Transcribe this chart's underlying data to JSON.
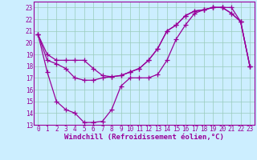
{
  "xlabel": "Windchill (Refroidissement éolien,°C)",
  "x": [
    0,
    1,
    2,
    3,
    4,
    5,
    6,
    7,
    8,
    9,
    10,
    11,
    12,
    13,
    14,
    15,
    16,
    17,
    18,
    19,
    20,
    21,
    22,
    23
  ],
  "line1_y": [
    20.7,
    19.0,
    18.5,
    18.5,
    18.5,
    18.5,
    17.8,
    17.2,
    17.1,
    17.2,
    17.5,
    17.8,
    18.5,
    19.5,
    21.0,
    21.5,
    22.3,
    22.7,
    22.8,
    23.0,
    23.0,
    22.5,
    21.8,
    18.0
  ],
  "line2_y": [
    20.7,
    17.5,
    15.0,
    14.3,
    14.0,
    13.2,
    13.2,
    13.3,
    14.3,
    16.3,
    17.0,
    17.0,
    17.0,
    17.3,
    18.5,
    20.3,
    21.5,
    22.5,
    22.8,
    23.0,
    23.0,
    23.0,
    21.8,
    18.0
  ],
  "line3_y": [
    20.7,
    18.5,
    18.2,
    17.8,
    17.0,
    16.8,
    16.8,
    17.0,
    17.1,
    17.2,
    17.5,
    17.8,
    18.5,
    19.5,
    21.0,
    21.5,
    22.3,
    22.7,
    22.8,
    23.0,
    23.0,
    22.5,
    21.8,
    18.0
  ],
  "line_color": "#990099",
  "bg_color": "#cceeff",
  "grid_color": "#99ccbb",
  "ylim_min": 13,
  "ylim_max": 23.5,
  "yticks": [
    13,
    14,
    15,
    16,
    17,
    18,
    19,
    20,
    21,
    22,
    23
  ],
  "xticks": [
    0,
    1,
    2,
    3,
    4,
    5,
    6,
    7,
    8,
    9,
    10,
    11,
    12,
    13,
    14,
    15,
    16,
    17,
    18,
    19,
    20,
    21,
    22,
    23
  ],
  "marker": "+",
  "markersize": 4,
  "linewidth": 0.9,
  "tick_fontsize": 5.5,
  "xlabel_fontsize": 6.5
}
